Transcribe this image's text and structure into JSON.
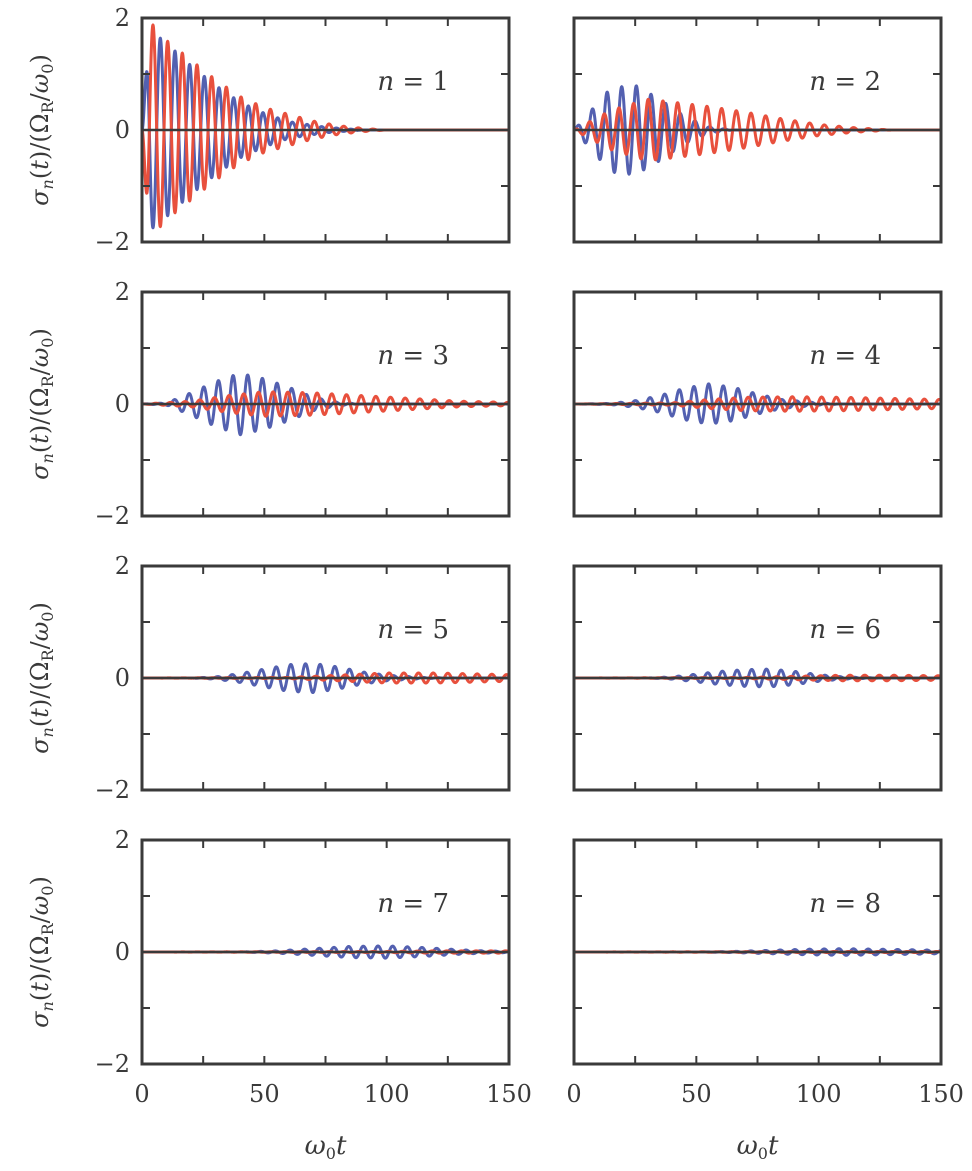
{
  "chart_data": {
    "type": "line",
    "layout": "4x2 grid of panels",
    "x_range": [
      0,
      150
    ],
    "y_range": [
      -2,
      2
    ],
    "xticks": [
      "0",
      "50",
      "100",
      "150"
    ],
    "yticks": [
      "−2",
      "0",
      "2"
    ],
    "ylabel": {
      "sigma": "σ",
      "n_sub": "n",
      "t": "(t)/(",
      "Omega": "Ω",
      "R_sub": "R",
      "slash": "/",
      "omega": "ω",
      "zero_sub": "0",
      "close": ")"
    },
    "xlabel": {
      "omega": "ω",
      "zero_sub": "0",
      "t": "t"
    },
    "series_colors": {
      "blue": "#5360b0",
      "red": "#e8503d",
      "zero_line": "#3a3a3a"
    },
    "panels": [
      {
        "label_var": "n",
        "label_eq": " = ",
        "label_val": "1",
        "blue": {
          "envelope": [
            [
              0,
              0
            ],
            [
              3,
              1.8
            ],
            [
              10,
              1.55
            ],
            [
              20,
              1.15
            ],
            [
              30,
              0.8
            ],
            [
              40,
              0.5
            ],
            [
              50,
              0.3
            ],
            [
              60,
              0.15
            ],
            [
              75,
              0.05
            ],
            [
              90,
              0.0
            ]
          ],
          "phase": 0.0
        },
        "red": {
          "envelope": [
            [
              0,
              0
            ],
            [
              3,
              1.95
            ],
            [
              10,
              1.6
            ],
            [
              20,
              1.25
            ],
            [
              30,
              0.9
            ],
            [
              40,
              0.6
            ],
            [
              50,
              0.4
            ],
            [
              60,
              0.28
            ],
            [
              70,
              0.16
            ],
            [
              80,
              0.08
            ],
            [
              90,
              0.03
            ],
            [
              100,
              0.0
            ]
          ],
          "phase": 3.1416
        }
      },
      {
        "label_var": "n",
        "label_eq": " = ",
        "label_val": "2",
        "blue": {
          "envelope": [
            [
              0,
              0
            ],
            [
              8,
              0.4
            ],
            [
              15,
              0.75
            ],
            [
              25,
              0.8
            ],
            [
              35,
              0.55
            ],
            [
              45,
              0.25
            ],
            [
              55,
              0.06
            ],
            [
              65,
              0.0
            ]
          ],
          "phase": 0.0
        },
        "red": {
          "envelope": [
            [
              0,
              0
            ],
            [
              15,
              0.35
            ],
            [
              30,
              0.55
            ],
            [
              40,
              0.5
            ],
            [
              55,
              0.42
            ],
            [
              70,
              0.32
            ],
            [
              85,
              0.2
            ],
            [
              100,
              0.1
            ],
            [
              115,
              0.04
            ],
            [
              130,
              0.0
            ]
          ],
          "phase": 1.2
        }
      },
      {
        "label_var": "n",
        "label_eq": " = ",
        "label_val": "3",
        "blue": {
          "envelope": [
            [
              0,
              0
            ],
            [
              10,
              0.02
            ],
            [
              20,
              0.2
            ],
            [
              30,
              0.4
            ],
            [
              40,
              0.55
            ],
            [
              50,
              0.45
            ],
            [
              60,
              0.3
            ],
            [
              70,
              0.12
            ],
            [
              80,
              0.03
            ],
            [
              90,
              0.0
            ]
          ],
          "phase": 0.3
        },
        "red": {
          "envelope": [
            [
              0,
              0
            ],
            [
              20,
              0.05
            ],
            [
              35,
              0.15
            ],
            [
              50,
              0.22
            ],
            [
              70,
              0.2
            ],
            [
              90,
              0.15
            ],
            [
              110,
              0.1
            ],
            [
              130,
              0.05
            ],
            [
              150,
              0.03
            ]
          ],
          "phase": 2.0
        }
      },
      {
        "label_var": "n",
        "label_eq": " = ",
        "label_val": "4",
        "blue": {
          "envelope": [
            [
              0,
              0
            ],
            [
              15,
              0.01
            ],
            [
              25,
              0.06
            ],
            [
              35,
              0.15
            ],
            [
              45,
              0.28
            ],
            [
              55,
              0.36
            ],
            [
              65,
              0.3
            ],
            [
              75,
              0.18
            ],
            [
              85,
              0.08
            ],
            [
              100,
              0.02
            ],
            [
              110,
              0.0
            ]
          ],
          "phase": 0.5
        },
        "red": {
          "envelope": [
            [
              0,
              0
            ],
            [
              40,
              0.02
            ],
            [
              55,
              0.08
            ],
            [
              70,
              0.12
            ],
            [
              90,
              0.13
            ],
            [
              110,
              0.12
            ],
            [
              130,
              0.1
            ],
            [
              150,
              0.08
            ]
          ],
          "phase": 2.4
        }
      },
      {
        "label_var": "n",
        "label_eq": " = ",
        "label_val": "5",
        "blue": {
          "envelope": [
            [
              0,
              0
            ],
            [
              20,
              0.0
            ],
            [
              30,
              0.02
            ],
            [
              40,
              0.08
            ],
            [
              50,
              0.16
            ],
            [
              60,
              0.24
            ],
            [
              70,
              0.26
            ],
            [
              80,
              0.2
            ],
            [
              90,
              0.11
            ],
            [
              100,
              0.05
            ],
            [
              115,
              0.01
            ],
            [
              130,
              0.0
            ]
          ],
          "phase": 0.7
        },
        "red": {
          "envelope": [
            [
              0,
              0
            ],
            [
              60,
              0.01
            ],
            [
              80,
              0.05
            ],
            [
              100,
              0.09
            ],
            [
              120,
              0.09
            ],
            [
              140,
              0.07
            ],
            [
              150,
              0.06
            ]
          ],
          "phase": 2.6
        }
      },
      {
        "label_var": "n",
        "label_eq": " = ",
        "label_val": "6",
        "blue": {
          "envelope": [
            [
              0,
              0
            ],
            [
              30,
              0.0
            ],
            [
              40,
              0.02
            ],
            [
              50,
              0.07
            ],
            [
              60,
              0.12
            ],
            [
              70,
              0.15
            ],
            [
              80,
              0.16
            ],
            [
              90,
              0.12
            ],
            [
              100,
              0.06
            ],
            [
              110,
              0.02
            ],
            [
              125,
              0.0
            ]
          ],
          "phase": 0.9
        },
        "red": {
          "envelope": [
            [
              0,
              0
            ],
            [
              70,
              0.01
            ],
            [
              90,
              0.03
            ],
            [
              110,
              0.05
            ],
            [
              130,
              0.05
            ],
            [
              150,
              0.04
            ]
          ],
          "phase": 2.8
        }
      },
      {
        "label_var": "n",
        "label_eq": " = ",
        "label_val": "7",
        "blue": {
          "envelope": [
            [
              0,
              0
            ],
            [
              40,
              0.0
            ],
            [
              55,
              0.02
            ],
            [
              70,
              0.06
            ],
            [
              85,
              0.1
            ],
            [
              100,
              0.11
            ],
            [
              115,
              0.08
            ],
            [
              130,
              0.04
            ],
            [
              140,
              0.02
            ],
            [
              150,
              0.01
            ]
          ],
          "phase": 1.1
        },
        "red": {
          "envelope": [
            [
              0,
              0
            ],
            [
              100,
              0.01
            ],
            [
              120,
              0.02
            ],
            [
              140,
              0.02
            ],
            [
              150,
              0.02
            ]
          ],
          "phase": 3.0
        }
      },
      {
        "label_var": "n",
        "label_eq": " = ",
        "label_val": "8",
        "blue": {
          "envelope": [
            [
              0,
              0
            ],
            [
              50,
              0.0
            ],
            [
              65,
              0.01
            ],
            [
              80,
              0.03
            ],
            [
              95,
              0.05
            ],
            [
              110,
              0.06
            ],
            [
              125,
              0.05
            ],
            [
              140,
              0.04
            ],
            [
              150,
              0.03
            ]
          ],
          "phase": 1.3
        },
        "red": {
          "envelope": [
            [
              0,
              0
            ],
            [
              110,
              0.01
            ],
            [
              130,
              0.01
            ],
            [
              150,
              0.01
            ]
          ],
          "phase": 3.2
        }
      }
    ],
    "oscillation_period": 6.0
  }
}
